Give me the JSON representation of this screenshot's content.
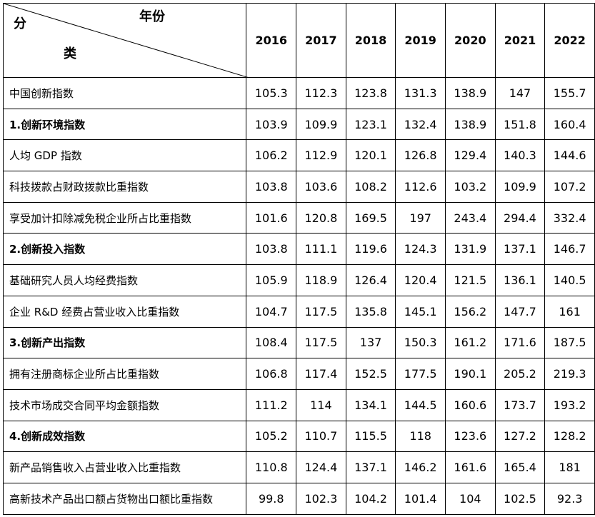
{
  "header": {
    "corner_top": "年份",
    "corner_left": "分",
    "corner_bottom": "类",
    "years": [
      "2016",
      "2017",
      "2018",
      "2019",
      "2020",
      "2021",
      "2022"
    ]
  },
  "table": {
    "rows": [
      {
        "label": "中国创新指数",
        "values": [
          105.3,
          112.3,
          123.8,
          131.3,
          138.9,
          147,
          155.7
        ]
      },
      {
        "label": "1.创新环境指数",
        "bold": true,
        "values": [
          103.9,
          109.9,
          123.1,
          132.4,
          138.9,
          151.8,
          160.4
        ]
      },
      {
        "label": "人均 GDP 指数",
        "values": [
          106.2,
          112.9,
          120.1,
          126.8,
          129.4,
          140.3,
          144.6
        ]
      },
      {
        "label": "科技拨款占财政拨款比重指数",
        "values": [
          103.8,
          103.6,
          108.2,
          112.6,
          103.2,
          109.9,
          107.2
        ]
      },
      {
        "label": "享受加计扣除减免税企业所占比重指数",
        "values": [
          101.6,
          120.8,
          169.5,
          197,
          243.4,
          294.4,
          332.4
        ]
      },
      {
        "label": "2.创新投入指数",
        "bold": true,
        "values": [
          103.8,
          111.1,
          119.6,
          124.3,
          131.9,
          137.1,
          146.7
        ]
      },
      {
        "label": "基础研究人员人均经费指数",
        "values": [
          105.9,
          118.9,
          126.4,
          120.4,
          121.5,
          136.1,
          140.5
        ]
      },
      {
        "label": "企业 R&D 经费占营业收入比重指数",
        "values": [
          104.7,
          117.5,
          135.8,
          145.1,
          156.2,
          147.7,
          161
        ]
      },
      {
        "label": "3.创新产出指数",
        "bold": true,
        "values": [
          108.4,
          117.5,
          137,
          150.3,
          161.2,
          171.6,
          187.5
        ]
      },
      {
        "label": "拥有注册商标企业所占比重指数",
        "values": [
          106.8,
          117.4,
          152.5,
          177.5,
          190.1,
          205.2,
          219.3
        ]
      },
      {
        "label": "技术市场成交合同平均金额指数",
        "values": [
          111.2,
          114,
          134.1,
          144.5,
          160.6,
          173.7,
          193.2
        ]
      },
      {
        "label": "4.创新成效指数",
        "bold": true,
        "values": [
          105.2,
          110.7,
          115.5,
          118,
          123.6,
          127.2,
          128.2
        ]
      },
      {
        "label": "新产品销售收入占营业收入比重指数",
        "values": [
          110.8,
          124.4,
          137.1,
          146.2,
          161.6,
          165.4,
          181
        ]
      },
      {
        "label": "高新技术产品出口额占货物出口额比重指数",
        "values": [
          99.8,
          102.3,
          104.2,
          101.4,
          104,
          102.5,
          92.3
        ]
      }
    ]
  }
}
